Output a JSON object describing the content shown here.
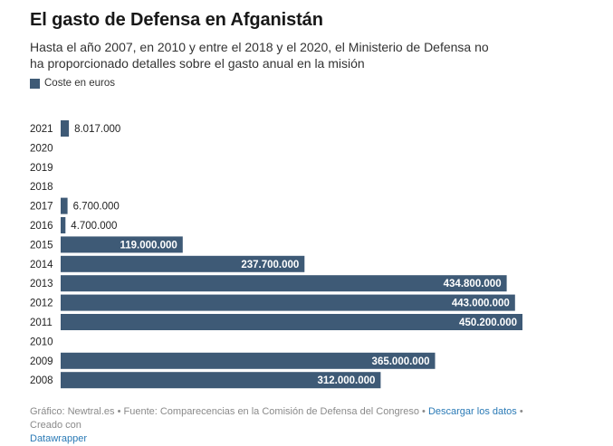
{
  "title": "El gasto de Defensa en Afganistán",
  "subtitle": "Hasta el año 2007, en 2010 y entre el 2018 y el 2020, el Ministerio de Defensa no ha proporcionado detalles sobre el gasto anual en la misión",
  "colors": {
    "bar": "#3e5a76",
    "label_inside": "#ffffff",
    "label_outside": "#222222",
    "link": "#2a7ab6"
  },
  "footer": {
    "source": "Gráfico: Newtral.es • Fuente: Comparecencias en la Comisión de Defensa del Congreso • ",
    "download_label": "Descargar los datos",
    "created_with": " • Creado con ",
    "tool_label": "Datawrapper"
  },
  "chart_data": {
    "type": "bar",
    "orientation": "horizontal",
    "categories": [
      "2021",
      "2020",
      "2019",
      "2018",
      "2017",
      "2016",
      "2015",
      "2014",
      "2013",
      "2012",
      "2011",
      "2010",
      "2009",
      "2008"
    ],
    "series": [
      {
        "name": "Coste en euros",
        "values": [
          8017000,
          null,
          null,
          null,
          6700000,
          4700000,
          119000000,
          237700000,
          434800000,
          443000000,
          450200000,
          null,
          365000000,
          312000000
        ],
        "labels": [
          "8.017.000",
          "",
          "",
          "",
          "6.700.000",
          "4.700.000",
          "119.000.000",
          "237.700.000",
          "434.800.000",
          "443.000.000",
          "450.200.000",
          "",
          "365.000.000",
          "312.000.000"
        ]
      }
    ],
    "xlim": [
      0,
      450200000
    ],
    "legend": "top-left",
    "grid": false
  }
}
